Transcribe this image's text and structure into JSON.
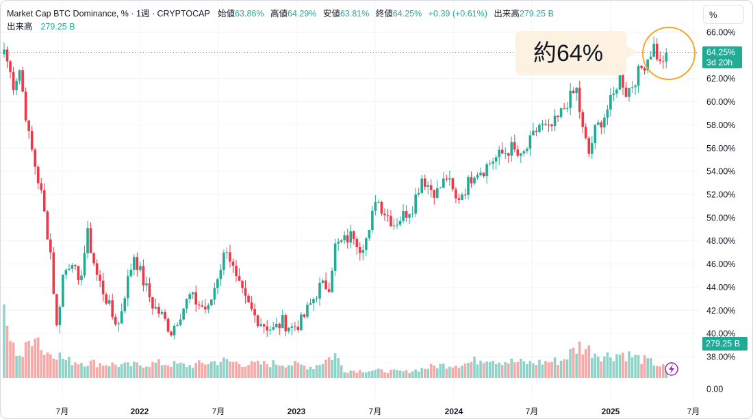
{
  "header": {
    "title": "Market Cap BTC Dominance, % · 1週 · CRYPTOCAP",
    "open_label": "始値",
    "open_value": "63.86%",
    "high_label": "高値",
    "high_value": "64.29%",
    "low_label": "安値",
    "low_value": "63.81%",
    "close_label": "終値",
    "close_value": "64.25%",
    "change": "+0.39 (+0.61%)",
    "volume_label": "出来高",
    "volume_value": "279.25 B"
  },
  "volume_row": {
    "label": "出来高",
    "value": "279.25 B"
  },
  "scale_button": "%",
  "annotation": {
    "text": "約64%"
  },
  "price_tag": {
    "value": "64.25%",
    "countdown": "3d 20h"
  },
  "volume_tag": {
    "value": "279.25 B"
  },
  "colors": {
    "up": "#22ab94",
    "down": "#f23645",
    "vol_up": "#8fd3c8",
    "vol_down": "#f7a9a7",
    "callout_bg": "#fdf1e1",
    "circle": "#f5a623"
  },
  "chart_data": {
    "type": "candlestick",
    "y_axis_labels": [
      "66.00%",
      "64.00%",
      "62.00%",
      "60.00%",
      "58.00%",
      "56.00%",
      "54.00%",
      "52.00%",
      "50.00%",
      "48.00%",
      "46.00%",
      "44.00%",
      "42.00%",
      "40.00%",
      "38.00%",
      "0.00"
    ],
    "x_axis_labels": [
      "7月",
      "2022",
      "7月",
      "2023",
      "7月",
      "2024",
      "7月",
      "2025",
      "7月"
    ],
    "ylim": [
      36.5,
      66.5
    ],
    "last_close": 64.25,
    "last_volume": "279.25 B",
    "anchors": [
      [
        0,
        64.5
      ],
      [
        3,
        61.5
      ],
      [
        5,
        62.8
      ],
      [
        8,
        57
      ],
      [
        12,
        52
      ],
      [
        15,
        47
      ],
      [
        17,
        40.5
      ],
      [
        19,
        45
      ],
      [
        22,
        46.5
      ],
      [
        24,
        44
      ],
      [
        27,
        48.5
      ],
      [
        30,
        45
      ],
      [
        33,
        43
      ],
      [
        35,
        41.5
      ],
      [
        37,
        40.8
      ],
      [
        39,
        43.5
      ],
      [
        42,
        46.8
      ],
      [
        45,
        44.5
      ],
      [
        48,
        42.5
      ],
      [
        51,
        41.5
      ],
      [
        54,
        40.2
      ],
      [
        57,
        41.8
      ],
      [
        60,
        43.2
      ],
      [
        63,
        42.5
      ],
      [
        66,
        42
      ],
      [
        69,
        45
      ],
      [
        72,
        47.5
      ],
      [
        75,
        44.5
      ],
      [
        78,
        42.8
      ],
      [
        81,
        41.5
      ],
      [
        84,
        40.8
      ],
      [
        87,
        40.3
      ],
      [
        90,
        41
      ],
      [
        93,
        40.5
      ],
      [
        96,
        41
      ],
      [
        99,
        42.5
      ],
      [
        102,
        44
      ],
      [
        105,
        44.2
      ],
      [
        107,
        47.5
      ],
      [
        110,
        48
      ],
      [
        113,
        48.6
      ],
      [
        115,
        47.5
      ],
      [
        118,
        48.5
      ],
      [
        120,
        51.8
      ],
      [
        123,
        50.5
      ],
      [
        126,
        49.5
      ],
      [
        129,
        50.2
      ],
      [
        132,
        51
      ],
      [
        135,
        53.5
      ],
      [
        138,
        52.5
      ],
      [
        140,
        52.2
      ],
      [
        143,
        53.5
      ],
      [
        146,
        51.5
      ],
      [
        149,
        52.5
      ],
      [
        152,
        54
      ],
      [
        155,
        54.2
      ],
      [
        158,
        55
      ],
      [
        161,
        55.5
      ],
      [
        164,
        56
      ],
      [
        167,
        55
      ],
      [
        170,
        56.5
      ],
      [
        173,
        58
      ],
      [
        176,
        57.5
      ],
      [
        179,
        58.5
      ],
      [
        182,
        60
      ],
      [
        185,
        61
      ],
      [
        187,
        57.5
      ],
      [
        189,
        55.5
      ],
      [
        191,
        57.5
      ],
      [
        194,
        58.8
      ],
      [
        197,
        60.5
      ],
      [
        199,
        62.5
      ],
      [
        201,
        60.8
      ],
      [
        203,
        61.5
      ],
      [
        205,
        62.5
      ],
      [
        207,
        63.3
      ],
      [
        210,
        64.8
      ],
      [
        212,
        63.2
      ],
      [
        214,
        64.25
      ]
    ],
    "volume_anchors": [
      [
        0,
        0.24
      ],
      [
        3,
        0.12
      ],
      [
        6,
        0.09
      ],
      [
        10,
        0.2
      ],
      [
        13,
        0.1
      ],
      [
        16,
        0.11
      ],
      [
        20,
        0.07
      ],
      [
        30,
        0.06
      ],
      [
        40,
        0.05
      ],
      [
        50,
        0.06
      ],
      [
        60,
        0.05
      ],
      [
        70,
        0.07
      ],
      [
        80,
        0.055
      ],
      [
        90,
        0.06
      ],
      [
        100,
        0.045
      ],
      [
        107,
        0.095
      ],
      [
        110,
        0.03
      ],
      [
        120,
        0.03
      ],
      [
        130,
        0.025
      ],
      [
        140,
        0.05
      ],
      [
        150,
        0.06
      ],
      [
        156,
        0.085
      ],
      [
        160,
        0.07
      ],
      [
        170,
        0.06
      ],
      [
        180,
        0.07
      ],
      [
        186,
        0.13
      ],
      [
        190,
        0.11
      ],
      [
        194,
        0.09
      ],
      [
        200,
        0.1
      ],
      [
        205,
        0.08
      ],
      [
        210,
        0.06
      ],
      [
        214,
        0.04
      ]
    ]
  }
}
